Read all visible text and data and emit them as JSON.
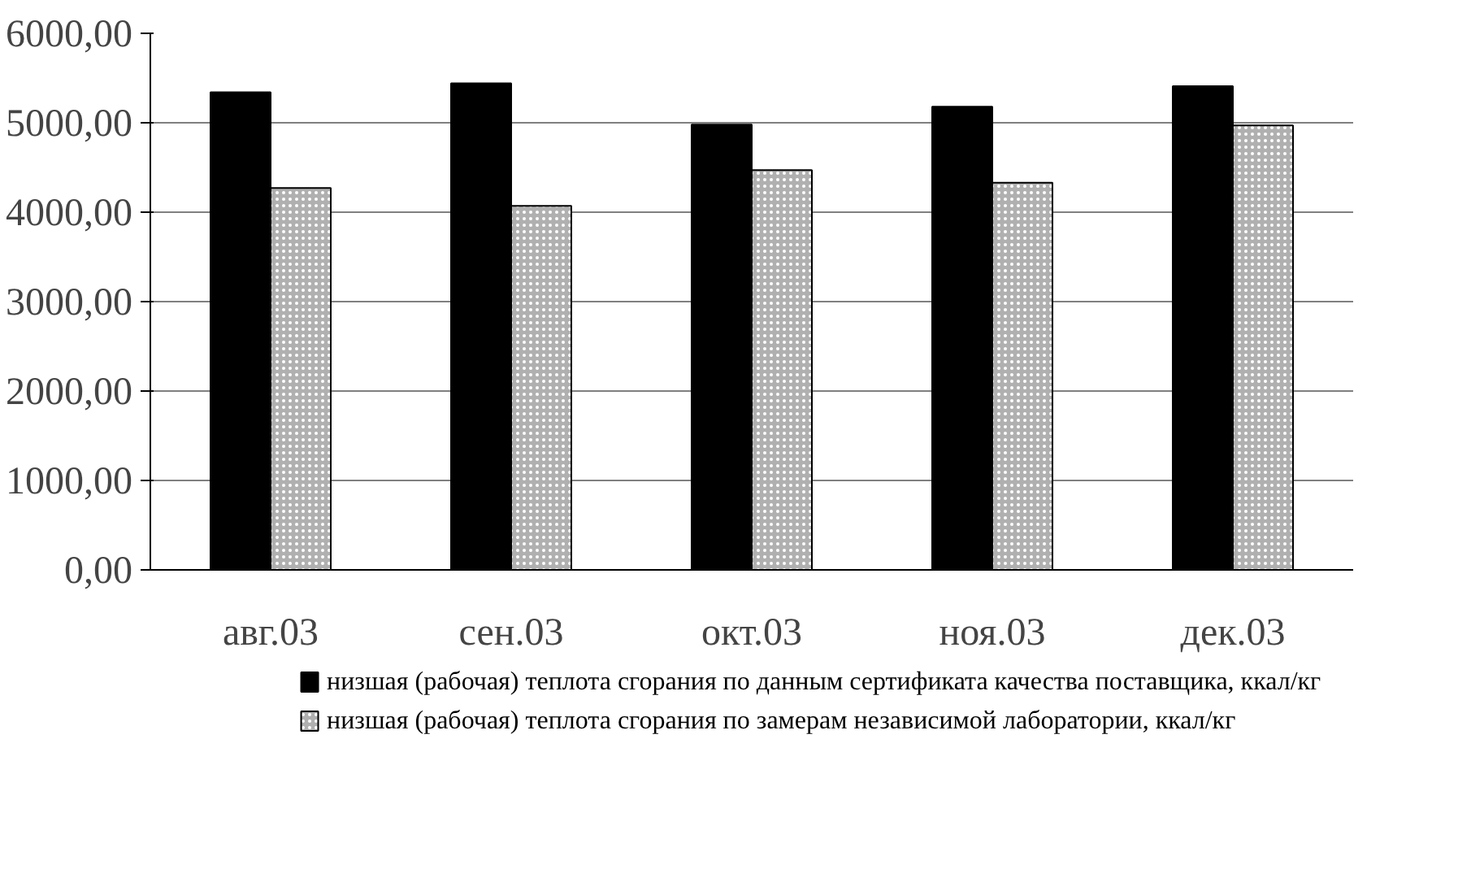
{
  "chart_data": {
    "type": "bar",
    "categories": [
      "авг.03",
      "сен.03",
      "окт.03",
      "ноя.03",
      "дек.03"
    ],
    "series": [
      {
        "name": "низшая (рабочая) теплота сгорания по данным сертификата качества поставщика, ккал/кг",
        "color": "#000000",
        "values": [
          5340,
          5440,
          4980,
          5180,
          5410
        ]
      },
      {
        "name": "низшая (рабочая) теплота сгорания по замерам независимой лаборатории, ккал/кг",
        "color": "#b0b0b0",
        "values": [
          4270,
          4070,
          4470,
          4330,
          4970
        ]
      }
    ],
    "ylim": [
      0,
      6000
    ],
    "yticks": [
      {
        "value": 0,
        "label": "0,00"
      },
      {
        "value": 1000,
        "label": "1000,00"
      },
      {
        "value": 2000,
        "label": "2000,00"
      },
      {
        "value": 3000,
        "label": "3000,00"
      },
      {
        "value": 4000,
        "label": "4000,00"
      },
      {
        "value": 5000,
        "label": "5000,00"
      },
      {
        "value": 6000,
        "label": "6000,00"
      }
    ],
    "grid": "y",
    "legend": "bottom"
  }
}
